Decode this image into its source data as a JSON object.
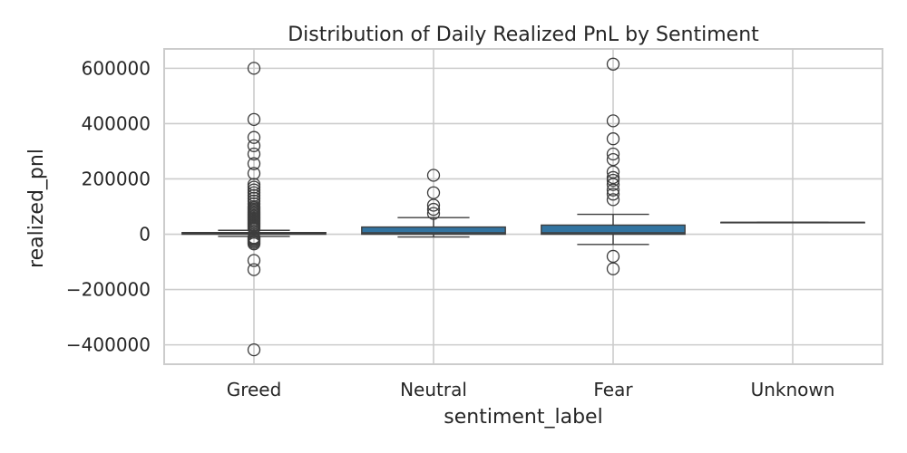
{
  "chart_data": {
    "type": "boxplot",
    "title": "Distribution of Daily Realized PnL by Sentiment",
    "xlabel": "sentiment_label",
    "ylabel": "realized_pnl",
    "categories": [
      "Greed",
      "Neutral",
      "Fear",
      "Unknown"
    ],
    "y_ticks": [
      600000,
      400000,
      200000,
      0,
      -200000,
      -400000
    ],
    "y_tick_labels": [
      "600000",
      "400000",
      "200000",
      "0",
      "−200000",
      "−400000"
    ],
    "ylim": [
      -470000,
      670000
    ],
    "grid": true,
    "colors": {
      "box": "#3274a1",
      "line": "#3d3d3d",
      "grid": "#cccccc",
      "frame": "#cccccc",
      "text": "#262626"
    },
    "boxes": [
      {
        "category": "Greed",
        "q1": 0,
        "median": 3000,
        "q3": 6000,
        "whisker_low": -8000,
        "whisker_high": 14000,
        "outliers": [
          600000,
          415000,
          350000,
          320000,
          290000,
          255000,
          220000,
          180000,
          170000,
          160000,
          150000,
          140000,
          130000,
          120000,
          110000,
          100000,
          95000,
          90000,
          85000,
          80000,
          75000,
          70000,
          65000,
          60000,
          55000,
          50000,
          45000,
          40000,
          35000,
          30000,
          25000,
          20000,
          -12000,
          -16000,
          -20000,
          -25000,
          -30000,
          -35000,
          -95000,
          -128000,
          -418000
        ]
      },
      {
        "category": "Neutral",
        "q1": 0,
        "median": 5000,
        "q3": 26000,
        "whisker_low": -10000,
        "whisker_high": 60000,
        "outliers": [
          213000,
          150000,
          105000,
          90000,
          75000
        ]
      },
      {
        "category": "Fear",
        "q1": 0,
        "median": 5000,
        "q3": 33000,
        "whisker_low": -37000,
        "whisker_high": 72000,
        "outliers": [
          615000,
          410000,
          345000,
          290000,
          270000,
          225000,
          205000,
          195000,
          180000,
          160000,
          145000,
          125000,
          -80000,
          -125000
        ]
      },
      {
        "category": "Unknown",
        "q1": 43000,
        "median": 43000,
        "q3": 43000,
        "whisker_low": 43000,
        "whisker_high": 43000,
        "outliers": []
      }
    ]
  }
}
